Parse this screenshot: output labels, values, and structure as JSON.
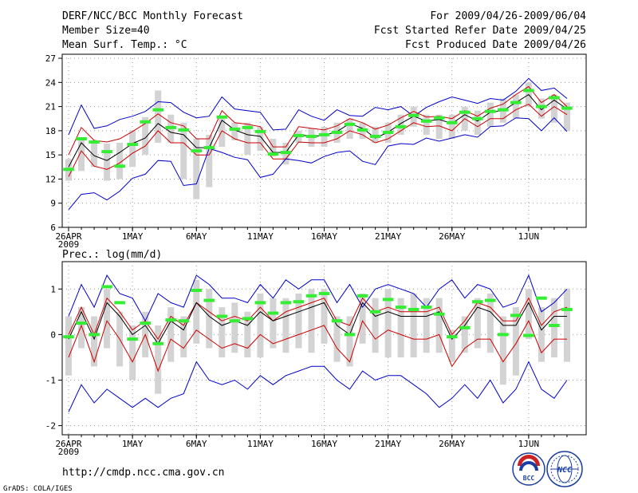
{
  "header": {
    "title": "DERF/NCC/BCC Monthly Forecast",
    "member_size": "Member Size=40",
    "variable": "Mean Surf. Temp.: °C",
    "period": "For 2009/04/26-2009/06/04",
    "started_refer": "Fcst Started Refer Date 2009/04/25",
    "produced": "Fcst Produced Date 2009/04/26"
  },
  "footer": {
    "url": "http://cmdp.ncc.cma.gov.cn",
    "grads": "GrADS: COLA/IGES",
    "logo_bcc": "BCC",
    "logo_ncc": "NCC"
  },
  "colors": {
    "envelope": "#0000cc",
    "spread": "#cc0000",
    "mean": "#000000",
    "box": "#d3d3d3",
    "observed": "#33ee33",
    "grid": "#999999"
  },
  "chart_data": [
    {
      "type": "line",
      "title": "Mean Surf. Temp.: °C",
      "xlabel": "",
      "ylabel": "°C",
      "x_tick_labels": [
        "26APR",
        "1MAY",
        "6MAY",
        "11MAY",
        "16MAY",
        "21MAY",
        "26MAY",
        "1JUN"
      ],
      "x_tick_days": [
        1,
        6,
        11,
        16,
        21,
        26,
        31,
        37
      ],
      "x_year_label": "2009",
      "ylim": [
        6,
        27.5
      ],
      "y_ticks": [
        6,
        9,
        12,
        15,
        18,
        21,
        24,
        27
      ],
      "grid": true,
      "days": [
        1,
        2,
        3,
        4,
        5,
        6,
        7,
        8,
        9,
        10,
        11,
        12,
        13,
        14,
        15,
        16,
        17,
        18,
        19,
        20,
        21,
        22,
        23,
        24,
        25,
        26,
        27,
        28,
        29,
        30,
        31,
        32,
        33,
        34,
        35,
        36,
        37,
        38,
        39,
        40
      ],
      "series": [
        {
          "name": "Ensemble max",
          "role": "upper",
          "values": [
            17.5,
            21.2,
            18.3,
            18.6,
            19.4,
            19.8,
            20.4,
            21.6,
            21.5,
            20.3,
            19.6,
            19.8,
            22.2,
            20.7,
            20.5,
            20.3,
            18.1,
            18.2,
            20.6,
            19.8,
            19.3,
            20.6,
            19.9,
            19.8,
            20.9,
            20.6,
            21.0,
            19.8,
            20.9,
            21.6,
            22.2,
            21.8,
            21.4,
            22.0,
            21.8,
            22.9,
            24.5,
            23.0,
            23.3,
            22.0
          ]
        },
        {
          "name": "Mean + spread",
          "role": "spread",
          "values": [
            15.0,
            18.4,
            16.8,
            16.6,
            17.0,
            17.9,
            18.9,
            20.1,
            19.0,
            18.6,
            17.0,
            17.0,
            20.5,
            19.0,
            18.8,
            18.5,
            16.0,
            16.0,
            18.5,
            18.3,
            18.1,
            18.6,
            19.5,
            19.0,
            18.2,
            18.7,
            19.6,
            20.4,
            19.7,
            19.8,
            19.5,
            20.5,
            19.8,
            20.8,
            21.3,
            22.5,
            23.5,
            21.5,
            22.5,
            21.0
          ]
        },
        {
          "name": "Ensemble mean",
          "role": "mean",
          "values": [
            13.5,
            16.5,
            14.9,
            14.3,
            15.3,
            16.4,
            17.1,
            18.9,
            17.8,
            17.5,
            15.9,
            15.9,
            19.3,
            18.1,
            17.5,
            17.3,
            15.3,
            15.3,
            17.5,
            17.3,
            17.4,
            17.9,
            18.9,
            18.3,
            17.1,
            17.8,
            18.9,
            19.8,
            19.2,
            19.4,
            18.9,
            20.0,
            19.2,
            20.3,
            20.5,
            21.5,
            22.5,
            20.6,
            21.8,
            20.7
          ]
        },
        {
          "name": "Mean - spread",
          "role": "spread",
          "values": [
            12.3,
            15.5,
            13.6,
            13.2,
            14.0,
            15.2,
            16.1,
            18.0,
            16.5,
            16.5,
            15.0,
            15.0,
            18.0,
            17.0,
            16.5,
            16.5,
            14.5,
            14.5,
            16.6,
            16.5,
            16.5,
            17.0,
            18.0,
            17.5,
            16.5,
            17.0,
            18.0,
            19.0,
            18.5,
            18.6,
            18.0,
            19.5,
            18.5,
            19.5,
            19.5,
            20.6,
            21.3,
            19.8,
            21.0,
            20.0
          ]
        },
        {
          "name": "Ensemble min",
          "role": "lower",
          "values": [
            8.2,
            10.1,
            10.3,
            9.4,
            10.5,
            12.1,
            12.6,
            14.3,
            14.2,
            11.2,
            11.4,
            15.8,
            15.3,
            14.7,
            14.4,
            12.2,
            12.6,
            14.5,
            14.3,
            14.0,
            14.8,
            15.3,
            15.5,
            14.2,
            13.8,
            16.1,
            16.4,
            16.3,
            17.1,
            16.7,
            17.1,
            17.5,
            17.2,
            18.5,
            18.6,
            19.6,
            19.5,
            18.0,
            19.6,
            17.9
          ]
        }
      ],
      "boxes": [
        {
          "low": 11.8,
          "high": 14.5
        },
        {
          "low": 13.0,
          "high": 17.0
        },
        {
          "low": 13.5,
          "high": 16.5
        },
        {
          "low": 11.8,
          "high": 16.4
        },
        {
          "low": 12.0,
          "high": 16.5
        },
        {
          "low": 13.5,
          "high": 18.0
        },
        {
          "low": 15.0,
          "high": 19.7
        },
        {
          "low": 16.5,
          "high": 23.0
        },
        {
          "low": 16.5,
          "high": 20.0
        },
        {
          "low": 12.0,
          "high": 19.0
        },
        {
          "low": 9.5,
          "high": 17.0
        },
        {
          "low": 11.0,
          "high": 17.5
        },
        {
          "low": 16.0,
          "high": 19.5
        },
        {
          "low": 16.8,
          "high": 19.0
        },
        {
          "low": 15.0,
          "high": 19.0
        },
        {
          "low": 15.5,
          "high": 18.5
        },
        {
          "low": 14.8,
          "high": 17.0
        },
        {
          "low": 13.8,
          "high": 16.5
        },
        {
          "low": 16.5,
          "high": 18.0
        },
        {
          "low": 16.0,
          "high": 18.3
        },
        {
          "low": 16.0,
          "high": 18.5
        },
        {
          "low": 16.5,
          "high": 19.0
        },
        {
          "low": 17.0,
          "high": 19.5
        },
        {
          "low": 17.0,
          "high": 19.0
        },
        {
          "low": 16.5,
          "high": 18.5
        },
        {
          "low": 16.5,
          "high": 19.0
        },
        {
          "low": 17.5,
          "high": 20.0
        },
        {
          "low": 18.5,
          "high": 21.0
        },
        {
          "low": 17.5,
          "high": 20.0
        },
        {
          "low": 17.0,
          "high": 20.0
        },
        {
          "low": 17.0,
          "high": 20.0
        },
        {
          "low": 18.0,
          "high": 21.0
        },
        {
          "low": 17.5,
          "high": 20.5
        },
        {
          "low": 18.5,
          "high": 21.5
        },
        {
          "low": 19.0,
          "high": 22.0
        },
        {
          "low": 19.5,
          "high": 22.5
        },
        {
          "low": 21.0,
          "high": 24.0
        },
        {
          "low": 19.5,
          "high": 22.0
        },
        {
          "low": 19.0,
          "high": 22.5
        },
        {
          "low": 18.0,
          "high": 21.5
        }
      ],
      "observed": [
        13.2,
        17.0,
        16.6,
        15.4,
        13.6,
        16.3,
        19.1,
        20.6,
        18.4,
        18.1,
        15.5,
        15.9,
        19.7,
        18.2,
        18.4,
        17.9,
        15.1,
        15.3,
        17.4,
        17.3,
        17.5,
        17.8,
        18.8,
        18.1,
        17.3,
        17.8,
        18.5,
        19.9,
        19.2,
        19.6,
        19.0,
        20.3,
        19.5,
        20.4,
        20.6,
        21.5,
        23.0,
        21.0,
        22.1,
        20.8
      ]
    },
    {
      "type": "line",
      "title": "Prec.: log(mm/d)",
      "xlabel": "",
      "ylabel": "log(mm/d)",
      "x_tick_labels": [
        "26APR",
        "1MAY",
        "6MAY",
        "11MAY",
        "16MAY",
        "21MAY",
        "26MAY",
        "1JUN"
      ],
      "x_tick_days": [
        1,
        6,
        11,
        16,
        21,
        26,
        31,
        37
      ],
      "x_year_label": "2009",
      "ylim": [
        -2.2,
        1.6
      ],
      "y_ticks": [
        -2,
        -1,
        0,
        1
      ],
      "grid": true,
      "days": [
        1,
        2,
        3,
        4,
        5,
        6,
        7,
        8,
        9,
        10,
        11,
        12,
        13,
        14,
        15,
        16,
        17,
        18,
        19,
        20,
        21,
        22,
        23,
        24,
        25,
        26,
        27,
        28,
        29,
        30,
        31,
        32,
        33,
        34,
        35,
        36,
        37,
        38,
        39,
        40
      ],
      "series": [
        {
          "name": "Ensemble max",
          "role": "upper",
          "values": [
            0.4,
            1.1,
            0.6,
            1.3,
            0.9,
            0.8,
            0.3,
            0.9,
            0.7,
            0.6,
            1.3,
            1.1,
            0.8,
            0.8,
            0.7,
            1.1,
            0.8,
            1.2,
            1.0,
            1.2,
            1.2,
            0.7,
            1.1,
            0.6,
            1.0,
            1.1,
            1.0,
            0.9,
            0.6,
            1.0,
            1.2,
            0.8,
            1.1,
            1.0,
            0.6,
            0.7,
            1.3,
            0.5,
            0.7,
            1.0
          ]
        },
        {
          "name": "Mean + spread",
          "role": "spread",
          "values": [
            0.0,
            0.6,
            0.0,
            0.8,
            0.5,
            0.1,
            0.3,
            -0.1,
            0.4,
            0.2,
            0.7,
            0.5,
            0.3,
            0.4,
            0.3,
            0.6,
            0.3,
            0.5,
            0.6,
            0.7,
            0.8,
            0.3,
            0.2,
            0.8,
            0.5,
            0.6,
            0.5,
            0.5,
            0.5,
            0.6,
            0.0,
            0.3,
            0.7,
            0.6,
            0.3,
            0.3,
            0.8,
            0.2,
            0.5,
            0.6
          ]
        },
        {
          "name": "Ensemble mean",
          "role": "mean",
          "values": [
            -0.1,
            0.5,
            -0.1,
            0.7,
            0.4,
            0.0,
            0.2,
            -0.2,
            0.3,
            0.1,
            0.7,
            0.4,
            0.2,
            0.3,
            0.2,
            0.5,
            0.3,
            0.4,
            0.5,
            0.6,
            0.7,
            0.2,
            0.0,
            0.7,
            0.4,
            0.5,
            0.4,
            0.4,
            0.4,
            0.5,
            -0.1,
            0.2,
            0.6,
            0.5,
            0.2,
            0.2,
            0.7,
            0.1,
            0.4,
            0.4
          ]
        },
        {
          "name": "Mean - spread",
          "role": "spread",
          "values": [
            -0.5,
            0.2,
            -0.6,
            0.3,
            -0.1,
            -0.6,
            0.0,
            -0.8,
            -0.1,
            -0.3,
            0.1,
            -0.1,
            -0.3,
            -0.2,
            -0.3,
            0.0,
            -0.2,
            -0.1,
            0.0,
            0.1,
            0.2,
            -0.3,
            -0.6,
            0.3,
            -0.1,
            0.1,
            0.0,
            -0.1,
            -0.1,
            0.0,
            -0.7,
            -0.3,
            -0.1,
            -0.1,
            -0.6,
            -0.2,
            0.3,
            -0.4,
            -0.1,
            -0.1
          ]
        },
        {
          "name": "Ensemble min",
          "role": "lower",
          "values": [
            -1.7,
            -1.1,
            -1.5,
            -1.2,
            -1.4,
            -1.6,
            -1.4,
            -1.6,
            -1.4,
            -1.3,
            -0.6,
            -1.0,
            -1.1,
            -1.0,
            -1.2,
            -0.9,
            -1.1,
            -0.9,
            -0.8,
            -0.7,
            -0.7,
            -1.0,
            -1.2,
            -0.8,
            -1.0,
            -0.9,
            -0.9,
            -1.1,
            -1.3,
            -1.6,
            -1.4,
            -1.1,
            -1.4,
            -1.0,
            -1.5,
            -1.2,
            -0.6,
            -1.2,
            -1.4,
            -1.0
          ]
        }
      ],
      "boxes": [
        {
          "low": -0.9,
          "high": 0.4
        },
        {
          "low": -0.3,
          "high": 0.6
        },
        {
          "low": -0.7,
          "high": 0.4
        },
        {
          "low": -0.3,
          "high": 1.0
        },
        {
          "low": -0.7,
          "high": 0.5
        },
        {
          "low": -1.0,
          "high": 0.2
        },
        {
          "low": -0.5,
          "high": 0.5
        },
        {
          "low": -1.3,
          "high": 0.2
        },
        {
          "low": -0.6,
          "high": 0.6
        },
        {
          "low": -0.5,
          "high": 0.4
        },
        {
          "low": -0.2,
          "high": 1.2
        },
        {
          "low": -0.3,
          "high": 1.0
        },
        {
          "low": -0.5,
          "high": 0.6
        },
        {
          "low": -0.4,
          "high": 0.7
        },
        {
          "low": -0.5,
          "high": 0.5
        },
        {
          "low": -0.5,
          "high": 0.9
        },
        {
          "low": -0.3,
          "high": 0.8
        },
        {
          "low": -0.4,
          "high": 0.8
        },
        {
          "low": -0.3,
          "high": 0.9
        },
        {
          "low": -0.4,
          "high": 1.0
        },
        {
          "low": -0.2,
          "high": 1.0
        },
        {
          "low": -0.6,
          "high": 0.4
        },
        {
          "low": -0.7,
          "high": 0.4
        },
        {
          "low": -0.2,
          "high": 0.9
        },
        {
          "low": -0.4,
          "high": 0.8
        },
        {
          "low": -0.5,
          "high": 1.0
        },
        {
          "low": -0.5,
          "high": 0.8
        },
        {
          "low": -0.5,
          "high": 0.9
        },
        {
          "low": -0.4,
          "high": 0.8
        },
        {
          "low": -0.4,
          "high": 0.8
        },
        {
          "low": -0.6,
          "high": 0.1
        },
        {
          "low": -0.4,
          "high": 0.4
        },
        {
          "low": -0.3,
          "high": 0.8
        },
        {
          "low": -0.4,
          "high": 0.9
        },
        {
          "low": -1.1,
          "high": 0.4
        },
        {
          "low": -0.9,
          "high": 0.6
        },
        {
          "low": -0.1,
          "high": 1.0
        },
        {
          "low": -0.6,
          "high": 0.6
        },
        {
          "low": -0.5,
          "high": 0.8
        },
        {
          "low": -0.6,
          "high": 1.0
        }
      ],
      "observed": [
        -0.05,
        0.25,
        0.0,
        1.05,
        0.7,
        -0.1,
        0.25,
        -0.2,
        0.32,
        0.3,
        0.97,
        0.75,
        0.4,
        0.3,
        0.35,
        0.7,
        0.47,
        0.7,
        0.72,
        0.85,
        0.9,
        0.3,
        0.0,
        0.85,
        0.5,
        0.77,
        0.6,
        0.55,
        0.6,
        0.45,
        -0.05,
        0.15,
        0.72,
        0.75,
        0.0,
        0.42,
        -0.02,
        0.8,
        0.2,
        0.55
      ]
    }
  ]
}
